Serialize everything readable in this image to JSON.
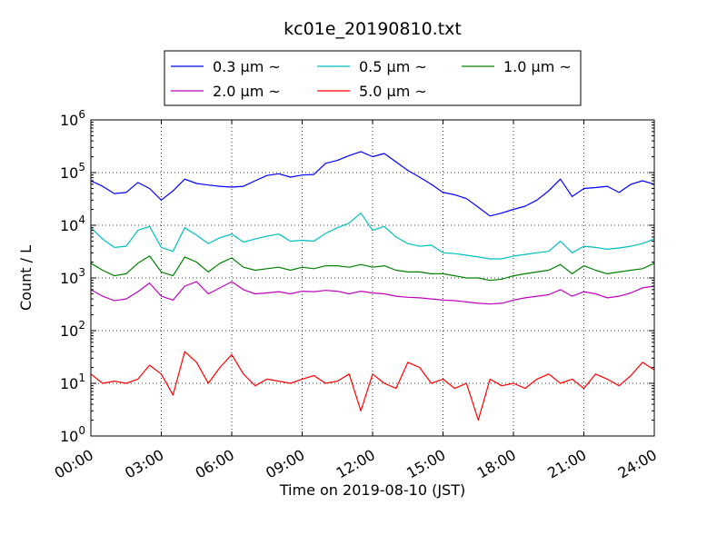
{
  "chart_data": {
    "type": "line",
    "title": "kc01e_20190810.txt",
    "xlabel": "Time on 2019-08-10 (JST)",
    "ylabel": "Count / L",
    "yscale": "log",
    "ylim": [
      1,
      1000000
    ],
    "xlim_hours": [
      0,
      24
    ],
    "x_tick_labels": [
      "00:00",
      "03:00",
      "06:00",
      "09:00",
      "12:00",
      "15:00",
      "18:00",
      "21:00",
      "24:00"
    ],
    "y_tick_exponents": [
      "0",
      "1",
      "2",
      "3",
      "4",
      "5",
      "6"
    ],
    "y_tick_base": "10",
    "grid": true,
    "legend_position": "top-center",
    "series": [
      {
        "name": "0.3 μm ~",
        "color": "#0000ff",
        "x_hours": [
          0,
          0.5,
          1,
          1.5,
          2,
          2.5,
          3,
          3.5,
          4,
          4.5,
          5,
          5.5,
          6,
          6.5,
          7,
          7.5,
          8,
          8.5,
          9,
          9.5,
          10,
          10.5,
          11,
          11.5,
          12,
          12.5,
          13,
          13.5,
          14,
          14.5,
          15,
          15.5,
          16,
          16.5,
          17,
          17.5,
          18,
          18.5,
          19,
          19.5,
          20,
          20.5,
          21,
          21.5,
          22,
          22.5,
          23,
          23.5,
          24
        ],
        "values": [
          70000,
          55000,
          40000,
          42000,
          65000,
          50000,
          30000,
          45000,
          75000,
          62000,
          58000,
          55000,
          53000,
          55000,
          70000,
          88000,
          95000,
          82000,
          90000,
          92000,
          150000,
          170000,
          210000,
          250000,
          200000,
          230000,
          160000,
          110000,
          82000,
          60000,
          42000,
          38000,
          32000,
          22000,
          15000,
          17000,
          20000,
          23000,
          30000,
          45000,
          75000,
          35000,
          50000,
          52000,
          55000,
          42000,
          60000,
          70000,
          60000
        ]
      },
      {
        "name": "0.5 μm ~",
        "color": "#00bfbf",
        "x_hours": [
          0,
          0.5,
          1,
          1.5,
          2,
          2.5,
          3,
          3.5,
          4,
          4.5,
          5,
          5.5,
          6,
          6.5,
          7,
          7.5,
          8,
          8.5,
          9,
          9.5,
          10,
          10.5,
          11,
          11.5,
          12,
          12.5,
          13,
          13.5,
          14,
          14.5,
          15,
          15.5,
          16,
          16.5,
          17,
          17.5,
          18,
          18.5,
          19,
          19.5,
          20,
          20.5,
          21,
          21.5,
          22,
          22.5,
          23,
          23.5,
          24
        ],
        "values": [
          9000,
          5500,
          3800,
          4000,
          8000,
          9500,
          3800,
          3200,
          9000,
          6500,
          4500,
          5800,
          6800,
          4800,
          5500,
          6200,
          6800,
          5000,
          5200,
          5000,
          7000,
          9000,
          11000,
          17000,
          8000,
          9500,
          6000,
          4500,
          4000,
          4200,
          3000,
          2900,
          2700,
          2500,
          2300,
          2300,
          2600,
          2800,
          3000,
          3200,
          5000,
          3000,
          4000,
          3800,
          3500,
          3700,
          4000,
          4500,
          5500
        ]
      },
      {
        "name": "1.0 μm ~",
        "color": "#008000",
        "x_hours": [
          0,
          0.5,
          1,
          1.5,
          2,
          2.5,
          3,
          3.5,
          4,
          4.5,
          5,
          5.5,
          6,
          6.5,
          7,
          7.5,
          8,
          8.5,
          9,
          9.5,
          10,
          10.5,
          11,
          11.5,
          12,
          12.5,
          13,
          13.5,
          14,
          14.5,
          15,
          15.5,
          16,
          16.5,
          17,
          17.5,
          18,
          18.5,
          19,
          19.5,
          20,
          20.5,
          21,
          21.5,
          22,
          22.5,
          23,
          23.5,
          24
        ],
        "values": [
          1900,
          1400,
          1100,
          1200,
          1900,
          2600,
          1300,
          1100,
          2500,
          2000,
          1300,
          1900,
          2400,
          1600,
          1400,
          1500,
          1600,
          1400,
          1600,
          1500,
          1700,
          1700,
          1600,
          1800,
          1600,
          1700,
          1400,
          1300,
          1300,
          1200,
          1200,
          1100,
          1000,
          1000,
          900,
          950,
          1100,
          1200,
          1300,
          1400,
          1800,
          1200,
          1700,
          1400,
          1200,
          1300,
          1400,
          1500,
          1900
        ]
      },
      {
        "name": "2.0 μm ~",
        "color": "#bf00bf",
        "x_hours": [
          0,
          0.5,
          1,
          1.5,
          2,
          2.5,
          3,
          3.5,
          4,
          4.5,
          5,
          5.5,
          6,
          6.5,
          7,
          7.5,
          8,
          8.5,
          9,
          9.5,
          10,
          10.5,
          11,
          11.5,
          12,
          12.5,
          13,
          13.5,
          14,
          14.5,
          15,
          15.5,
          16,
          16.5,
          17,
          17.5,
          18,
          18.5,
          19,
          19.5,
          20,
          20.5,
          21,
          21.5,
          22,
          22.5,
          23,
          23.5,
          24
        ],
        "values": [
          600,
          450,
          370,
          400,
          550,
          800,
          450,
          380,
          700,
          850,
          500,
          650,
          850,
          600,
          500,
          520,
          550,
          500,
          560,
          550,
          580,
          560,
          500,
          560,
          520,
          500,
          450,
          430,
          420,
          400,
          380,
          370,
          350,
          330,
          320,
          330,
          380,
          420,
          450,
          480,
          600,
          450,
          550,
          500,
          420,
          450,
          520,
          650,
          700
        ]
      },
      {
        "name": "5.0 μm ~",
        "color": "#ff0000",
        "x_hours": [
          0,
          0.5,
          1,
          1.5,
          2,
          2.5,
          3,
          3.5,
          4,
          4.5,
          5,
          5.5,
          6,
          6.5,
          7,
          7.5,
          8,
          8.5,
          9,
          9.5,
          10,
          10.5,
          11,
          11.5,
          12,
          12.5,
          13,
          13.5,
          14,
          14.5,
          15,
          15.5,
          16,
          16.5,
          17,
          17.5,
          18,
          18.5,
          19,
          19.5,
          20,
          20.5,
          21,
          21.5,
          22,
          22.5,
          23,
          23.5,
          24
        ],
        "values": [
          15,
          10,
          11,
          10,
          12,
          22,
          15,
          6,
          40,
          25,
          10,
          20,
          35,
          15,
          9,
          12,
          11,
          10,
          12,
          14,
          10,
          11,
          15,
          3,
          15,
          10,
          8,
          25,
          20,
          10,
          12,
          8,
          10,
          2,
          12,
          9,
          10,
          8,
          12,
          15,
          10,
          12,
          8,
          15,
          12,
          9,
          14,
          25,
          18
        ]
      }
    ]
  }
}
